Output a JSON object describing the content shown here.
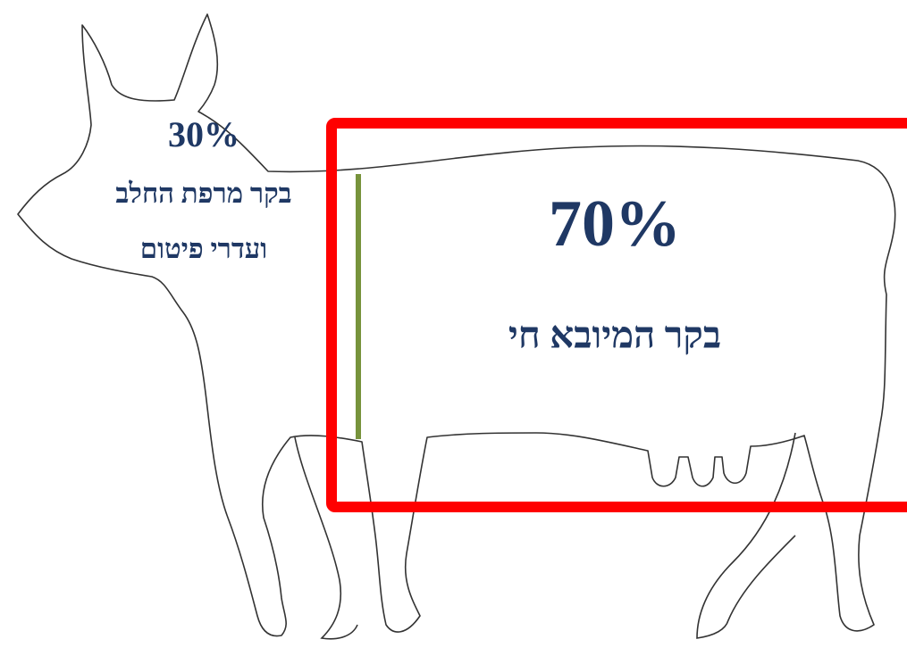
{
  "left": {
    "percent": "30%",
    "line1": "בקר מרפת החלב",
    "line2": "ועדרי פיטום"
  },
  "right": {
    "percent": "70%",
    "label": "בקר המיובא חי"
  }
}
